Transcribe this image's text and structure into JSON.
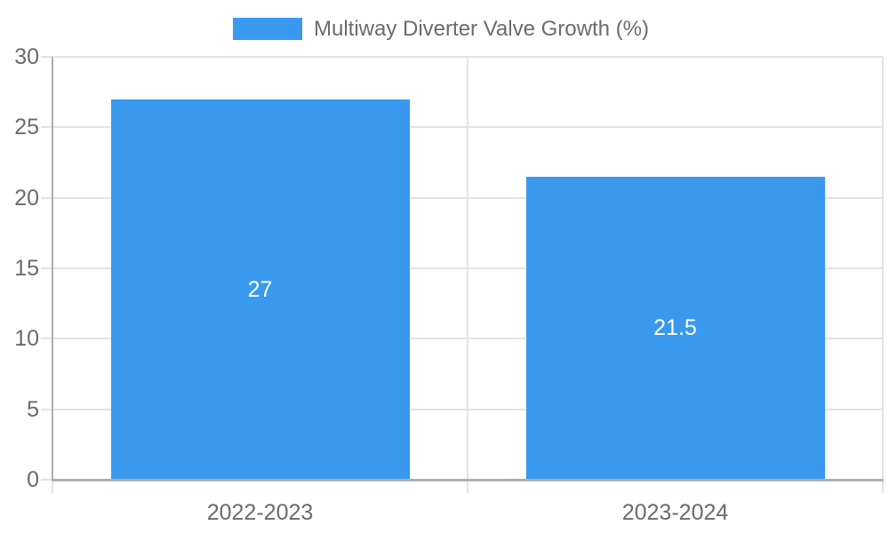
{
  "colors": {
    "bar": "#3999ee",
    "grid": "#e3e3e3",
    "axis_line": "#aeaeae",
    "tick_text": "#6b6b6b",
    "legend_text": "#6b6b6b",
    "bar_label_text": "#ffffff",
    "background": "#ffffff"
  },
  "chart_data": {
    "type": "bar",
    "title": "",
    "legend_entries": [
      "Multiway Diverter Valve Growth (%)"
    ],
    "legend_position": "top",
    "categories": [
      "2022-2023",
      "2023-2024"
    ],
    "values": [
      27,
      21.5
    ],
    "value_labels": [
      "27",
      "21.5"
    ],
    "ytick_labels": [
      "0",
      "5",
      "10",
      "15",
      "20",
      "25",
      "30"
    ],
    "yticks": [
      0,
      5,
      10,
      15,
      20,
      25,
      30
    ],
    "ylim": [
      0,
      30
    ],
    "grid": true,
    "xlabel": "",
    "ylabel": ""
  }
}
